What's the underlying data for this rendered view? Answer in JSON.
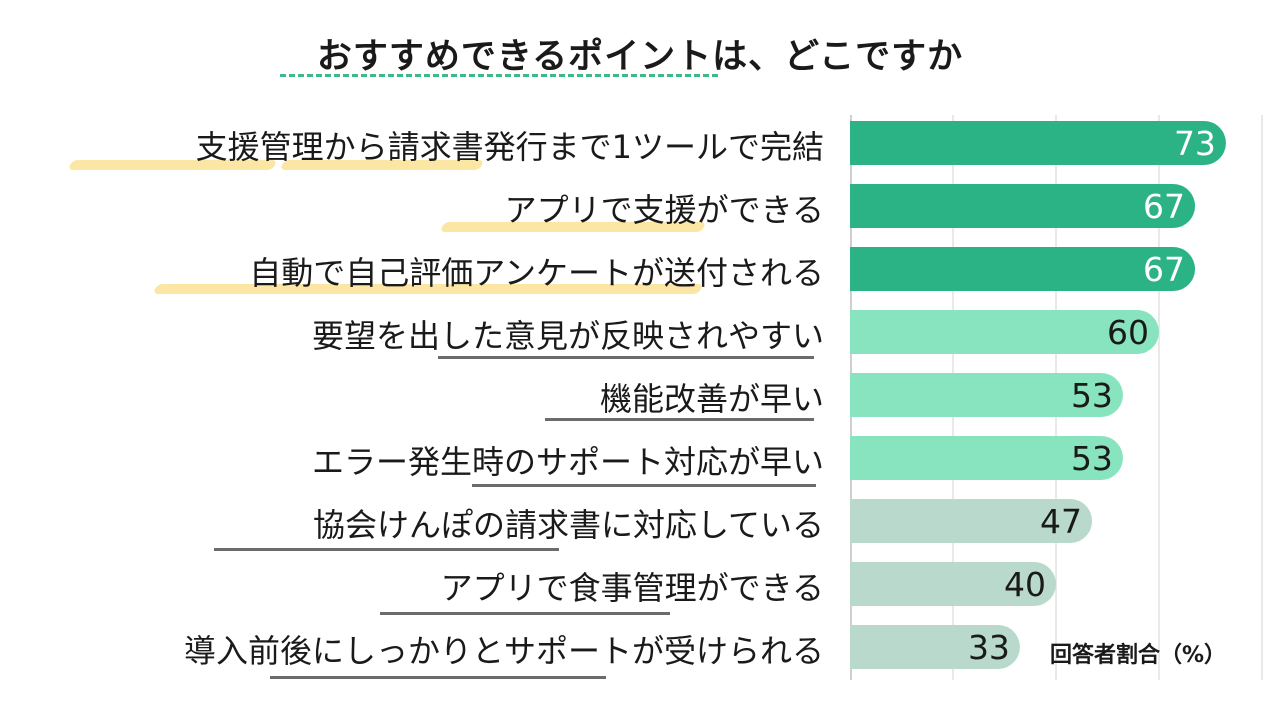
{
  "title": "おすすめできるポイントは、どこですか",
  "unit_label": "回答者割合（%）",
  "colors": {
    "dark": "#2bb285",
    "light": "#88e3bf",
    "gray": "#b8d9cc",
    "grid": "#e2e2e2",
    "highlight": "#fbe7a3",
    "underline": "#6b6b6b"
  },
  "chart_data": {
    "type": "bar",
    "orientation": "horizontal",
    "title": "おすすめできるポイントは、どこですか",
    "xlabel": "回答者割合（%）",
    "ylabel": "",
    "xlim": [
      0,
      100
    ],
    "grid": true,
    "categories": [
      "支援管理から請求書発行まで1ツールで完結",
      "アプリで支援ができる",
      "自動で自己評価アンケートが送付される",
      "要望を出した意見が反映されやすい",
      "機能改善が早い",
      "エラー発生時のサポート対応が早い",
      "協会けんぽの請求書に対応している",
      "アプリで食事管理ができる",
      "導入前後にしっかりとサポートが受けられる"
    ],
    "values": [
      73,
      67,
      67,
      60,
      53,
      53,
      47,
      40,
      33
    ],
    "value_labels": [
      "73",
      "67",
      "67",
      "60",
      "53",
      "53",
      "47",
      "40",
      "33"
    ],
    "bar_colors": [
      "dark",
      "dark",
      "dark",
      "light",
      "light",
      "light",
      "gray",
      "gray",
      "gray"
    ]
  }
}
